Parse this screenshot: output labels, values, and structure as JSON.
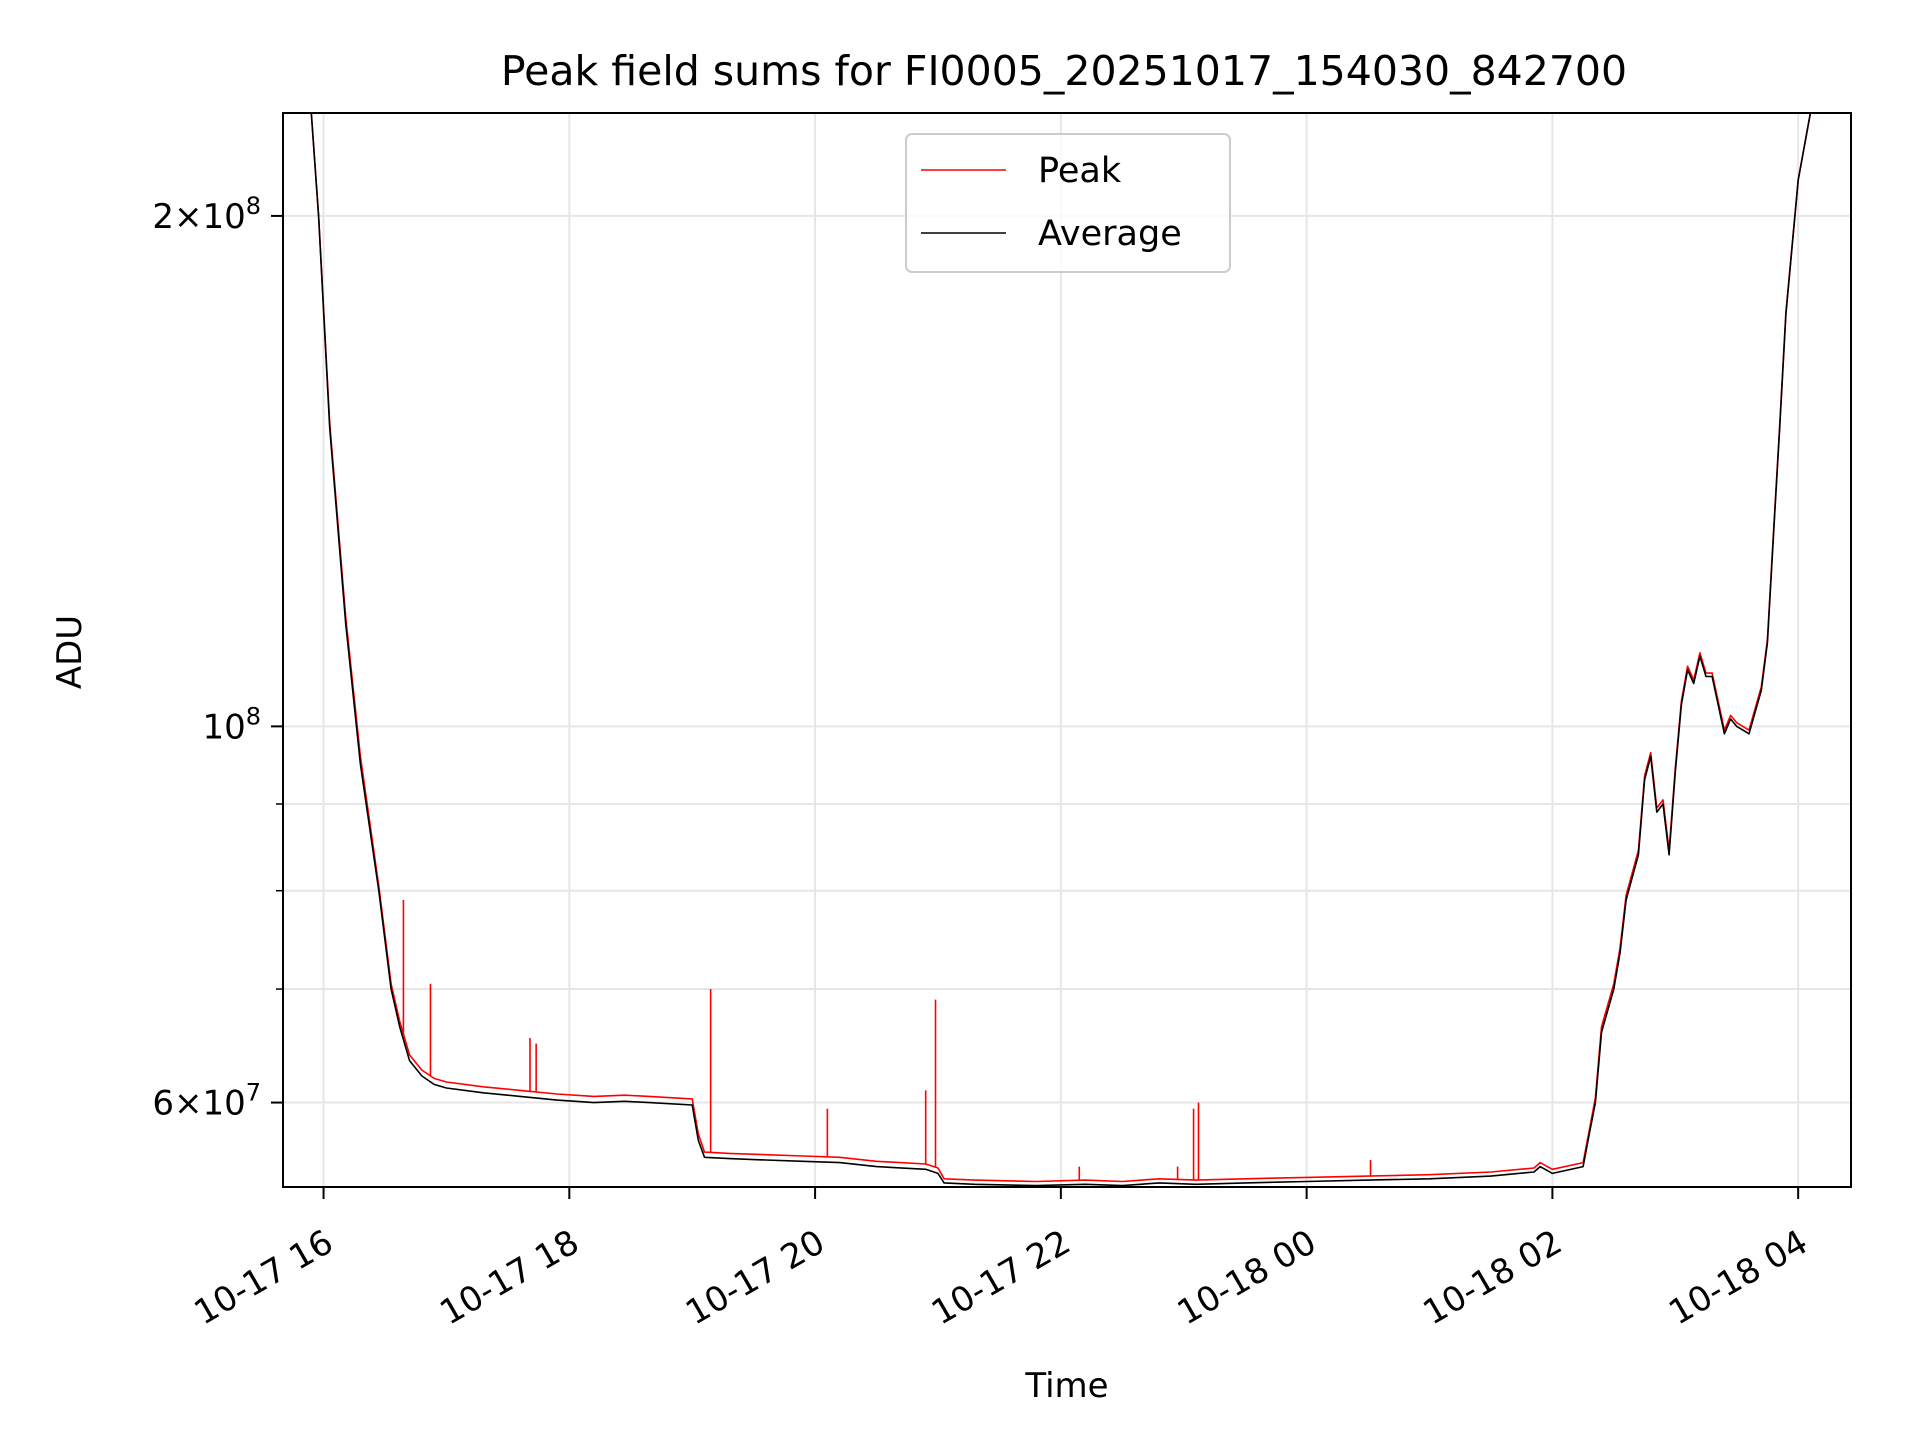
{
  "chart_data": {
    "type": "line",
    "title": "Peak field sums for FI0005_20251017_154030_842700",
    "xlabel": "Time",
    "ylabel": "ADU",
    "yscale": "log",
    "xlim_hours": [
      15.67,
      28.43
    ],
    "ylim": [
      53500000,
      230000000
    ],
    "x_ticks": [
      {
        "hours": 16,
        "label": "10-17 16"
      },
      {
        "hours": 18,
        "label": "10-17 18"
      },
      {
        "hours": 20,
        "label": "10-17 20"
      },
      {
        "hours": 22,
        "label": "10-17 22"
      },
      {
        "hours": 24,
        "label": "10-18 00"
      },
      {
        "hours": 26,
        "label": "10-18 02"
      },
      {
        "hours": 28,
        "label": "10-18 04"
      }
    ],
    "y_ticks_major": [
      {
        "value": 60000000,
        "mantissa": "6",
        "exponent": "7",
        "times": "×10"
      },
      {
        "value": 100000000,
        "mantissa": "",
        "exponent": "8",
        "times": "10"
      },
      {
        "value": 200000000,
        "mantissa": "2",
        "exponent": "8",
        "times": "×10"
      }
    ],
    "y_ticks_minor": [
      70000000,
      80000000,
      90000000
    ],
    "grid": true,
    "legend": {
      "position": "upper-center",
      "entries": [
        {
          "name": "Peak",
          "color": "#ff0000"
        },
        {
          "name": "Average",
          "color": "#000000"
        }
      ]
    },
    "series": [
      {
        "name": "Average",
        "color": "#000000",
        "x_hours": [
          15.72,
          15.9,
          15.96,
          16.05,
          16.18,
          16.3,
          16.45,
          16.55,
          16.62,
          16.7,
          16.8,
          16.9,
          17.0,
          17.3,
          17.6,
          17.9,
          18.2,
          18.45,
          18.65,
          19.0,
          19.05,
          19.1,
          19.3,
          19.6,
          19.9,
          20.2,
          20.5,
          20.9,
          21.0,
          21.05,
          21.3,
          21.8,
          22.2,
          22.5,
          22.8,
          23.1,
          23.5,
          24.0,
          24.5,
          25.0,
          25.5,
          25.85,
          25.9,
          26.0,
          26.25,
          26.3,
          26.35,
          26.4,
          26.5,
          26.55,
          26.6,
          26.7,
          26.75,
          26.8,
          26.85,
          26.9,
          26.95,
          27.0,
          27.05,
          27.1,
          27.15,
          27.2,
          27.25,
          27.3,
          27.4,
          27.45,
          27.5,
          27.55,
          27.6,
          27.7,
          27.75,
          27.8,
          27.85,
          27.9,
          28.0,
          28.1,
          28.43
        ],
        "values": [
          230000000,
          230000000,
          200000000,
          150000000,
          115000000,
          95000000,
          80000000,
          70000000,
          66500000,
          63500000,
          62200000,
          61500000,
          61200000,
          60800000,
          60500000,
          60200000,
          60000000,
          60100000,
          60000000,
          59800000,
          57000000,
          55700000,
          55600000,
          55500000,
          55400000,
          55300000,
          55000000,
          54800000,
          54500000,
          53800000,
          53700000,
          53600000,
          53700000,
          53600000,
          53800000,
          53700000,
          53800000,
          53900000,
          54000000,
          54100000,
          54300000,
          54600000,
          55000000,
          54500000,
          55000000,
          57500000,
          60000000,
          66000000,
          70000000,
          73500000,
          79000000,
          84000000,
          93000000,
          96000000,
          89000000,
          90000000,
          84000000,
          94000000,
          103000000,
          108000000,
          106000000,
          110000000,
          107000000,
          107000000,
          99000000,
          101000000,
          100000000,
          99500000,
          99000000,
          105000000,
          112000000,
          130000000,
          150000000,
          175000000,
          210000000,
          230000000,
          230000000
        ]
      },
      {
        "name": "Peak",
        "color": "#ff0000",
        "x_hours": [
          15.72,
          15.9,
          15.96,
          16.05,
          16.18,
          16.3,
          16.45,
          16.55,
          16.62,
          16.7,
          16.8,
          16.9,
          17.0,
          17.3,
          17.6,
          17.9,
          18.2,
          18.45,
          18.65,
          19.0,
          19.05,
          19.1,
          19.3,
          19.6,
          19.9,
          20.2,
          20.5,
          20.9,
          21.0,
          21.05,
          21.3,
          21.8,
          22.2,
          22.5,
          22.8,
          23.1,
          23.5,
          24.0,
          24.5,
          25.0,
          25.5,
          25.85,
          25.9,
          26.0,
          26.25,
          26.3,
          26.35,
          26.4,
          26.5,
          26.55,
          26.6,
          26.7,
          26.75,
          26.8,
          26.85,
          26.9,
          26.95,
          27.0,
          27.05,
          27.1,
          27.15,
          27.2,
          27.25,
          27.3,
          27.4,
          27.45,
          27.5,
          27.55,
          27.6,
          27.7,
          27.75,
          27.8,
          27.85,
          27.9,
          28.0,
          28.1,
          28.43
        ],
        "values": [
          230000000,
          230000000,
          200000000,
          151000000,
          116000000,
          96000000,
          80500000,
          70500000,
          67000000,
          64000000,
          62700000,
          62000000,
          61700000,
          61300000,
          61000000,
          60700000,
          60500000,
          60600000,
          60500000,
          60300000,
          57500000,
          56100000,
          56000000,
          55900000,
          55800000,
          55700000,
          55400000,
          55200000,
          54900000,
          54100000,
          54000000,
          53900000,
          54000000,
          53900000,
          54100000,
          54000000,
          54100000,
          54200000,
          54300000,
          54400000,
          54600000,
          54900000,
          55300000,
          54800000,
          55300000,
          57800000,
          60400000,
          66500000,
          70500000,
          74000000,
          79500000,
          84500000,
          93500000,
          96500000,
          89500000,
          90500000,
          84500000,
          94500000,
          103500000,
          108500000,
          106500000,
          110500000,
          107500000,
          107500000,
          99500000,
          101500000,
          100500000,
          100000000,
          99500000,
          105500000,
          112500000,
          130500000,
          150500000,
          175500000,
          210000000,
          230000000,
          230000000
        ],
        "spikes": [
          {
            "hours": 16.65,
            "value": 79000000
          },
          {
            "hours": 16.87,
            "value": 70500000
          },
          {
            "hours": 17.68,
            "value": 65500000
          },
          {
            "hours": 17.73,
            "value": 65000000
          },
          {
            "hours": 19.15,
            "value": 70000000
          },
          {
            "hours": 20.1,
            "value": 59500000
          },
          {
            "hours": 20.9,
            "value": 61000000
          },
          {
            "hours": 20.98,
            "value": 69000000
          },
          {
            "hours": 22.15,
            "value": 55000000
          },
          {
            "hours": 22.95,
            "value": 55000000
          },
          {
            "hours": 23.08,
            "value": 59500000
          },
          {
            "hours": 23.12,
            "value": 60000000
          },
          {
            "hours": 24.52,
            "value": 55500000
          },
          {
            "hours": 27.85,
            "value": 150000000
          }
        ]
      }
    ]
  }
}
